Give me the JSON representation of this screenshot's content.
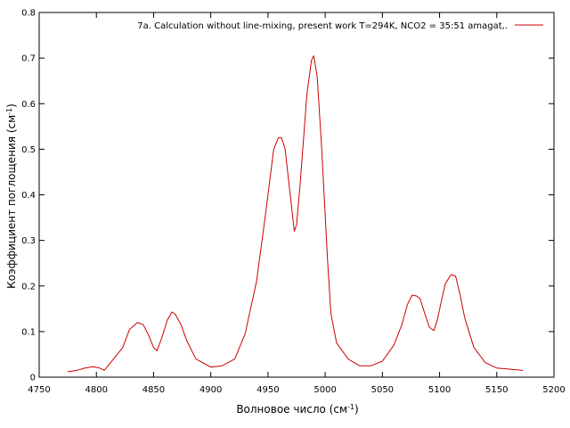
{
  "chart_data": {
    "type": "line",
    "title": "",
    "xlabel": "Волновое число (см",
    "xlabel_sup": "-1",
    "xlabel_end": ")",
    "ylabel": "Коэффициент поглощения (см",
    "ylabel_sup": "-1",
    "ylabel_end": ")",
    "xlim": [
      4750,
      5200
    ],
    "ylim": [
      0,
      0.8
    ],
    "xticks": [
      4750,
      4800,
      4850,
      4900,
      4950,
      5000,
      5050,
      5100,
      5150,
      5200
    ],
    "yticks": [
      0,
      0.1,
      0.2,
      0.3,
      0.4,
      0.5,
      0.6,
      0.7,
      0.8
    ],
    "grid": false,
    "legend_position": "top-right",
    "series": [
      {
        "name": "7a. Calculation without line-mixing, present work T=294K, NCO2 = 35:51 amagat,.",
        "color": "#cc0000",
        "x": [
          4775,
          4783,
          4790,
          4797,
          4803,
          4807,
          4815,
          4823,
          4829,
          4836,
          4841,
          4846,
          4850,
          4853,
          4857,
          4862,
          4866,
          4869,
          4874,
          4879,
          4887,
          4900,
          4910,
          4921,
          4930,
          4940,
          4948,
          4955,
          4959,
          4962,
          4965,
          4969,
          4973,
          4975,
          4978,
          4981,
          4984,
          4988,
          4990,
          4993,
          4997,
          5002,
          5005,
          5010,
          5020,
          5030,
          5040,
          5050,
          5060,
          5067,
          5072,
          5076,
          5080,
          5083,
          5087,
          5091,
          5095,
          5098,
          5101,
          5105,
          5110,
          5114,
          5118,
          5122,
          5130,
          5140,
          5150,
          5173
        ],
        "y": [
          0.012,
          0.015,
          0.02,
          0.023,
          0.02,
          0.015,
          0.04,
          0.065,
          0.105,
          0.12,
          0.115,
          0.09,
          0.065,
          0.058,
          0.085,
          0.125,
          0.143,
          0.138,
          0.115,
          0.08,
          0.04,
          0.022,
          0.025,
          0.04,
          0.095,
          0.21,
          0.36,
          0.5,
          0.525,
          0.525,
          0.5,
          0.41,
          0.32,
          0.335,
          0.42,
          0.52,
          0.62,
          0.695,
          0.705,
          0.66,
          0.5,
          0.26,
          0.14,
          0.075,
          0.04,
          0.025,
          0.025,
          0.035,
          0.07,
          0.115,
          0.16,
          0.18,
          0.178,
          0.172,
          0.14,
          0.11,
          0.102,
          0.125,
          0.16,
          0.205,
          0.225,
          0.222,
          0.18,
          0.13,
          0.065,
          0.032,
          0.02,
          0.015
        ]
      }
    ]
  }
}
